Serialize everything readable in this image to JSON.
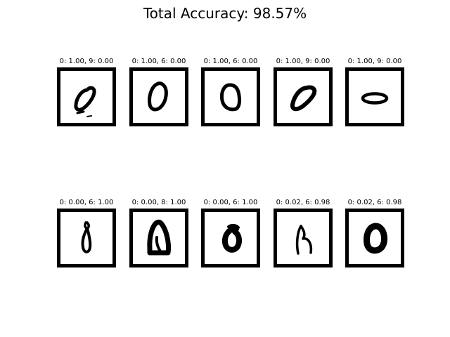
{
  "figure": {
    "title": "Total Accuracy: 98.57%"
  },
  "chart_data": {
    "type": "image-grid",
    "title": "Total Accuracy: 98.57%",
    "rows": 2,
    "cols": 5,
    "panels": [
      {
        "label": "0: 1.00, 9: 0.00",
        "digit_icon": "handwritten-zero-icon"
      },
      {
        "label": "0: 1.00, 6: 0.00",
        "digit_icon": "handwritten-zero-icon"
      },
      {
        "label": "0: 1.00, 6: 0.00",
        "digit_icon": "handwritten-zero-icon"
      },
      {
        "label": "0: 1.00, 9: 0.00",
        "digit_icon": "handwritten-zero-icon"
      },
      {
        "label": "0: 1.00, 9: 0.00",
        "digit_icon": "handwritten-zero-icon"
      },
      {
        "label": "0: 0.00, 6: 1.00",
        "digit_icon": "handwritten-zero-icon"
      },
      {
        "label": "0: 0.00, 8: 1.00",
        "digit_icon": "handwritten-zero-icon"
      },
      {
        "label": "0: 0.00, 6: 1.00",
        "digit_icon": "handwritten-zero-icon"
      },
      {
        "label": "0: 0.02, 6: 0.98",
        "digit_icon": "handwritten-zero-icon"
      },
      {
        "label": "0: 0.02, 6: 0.98",
        "digit_icon": "handwritten-zero-icon"
      }
    ]
  }
}
